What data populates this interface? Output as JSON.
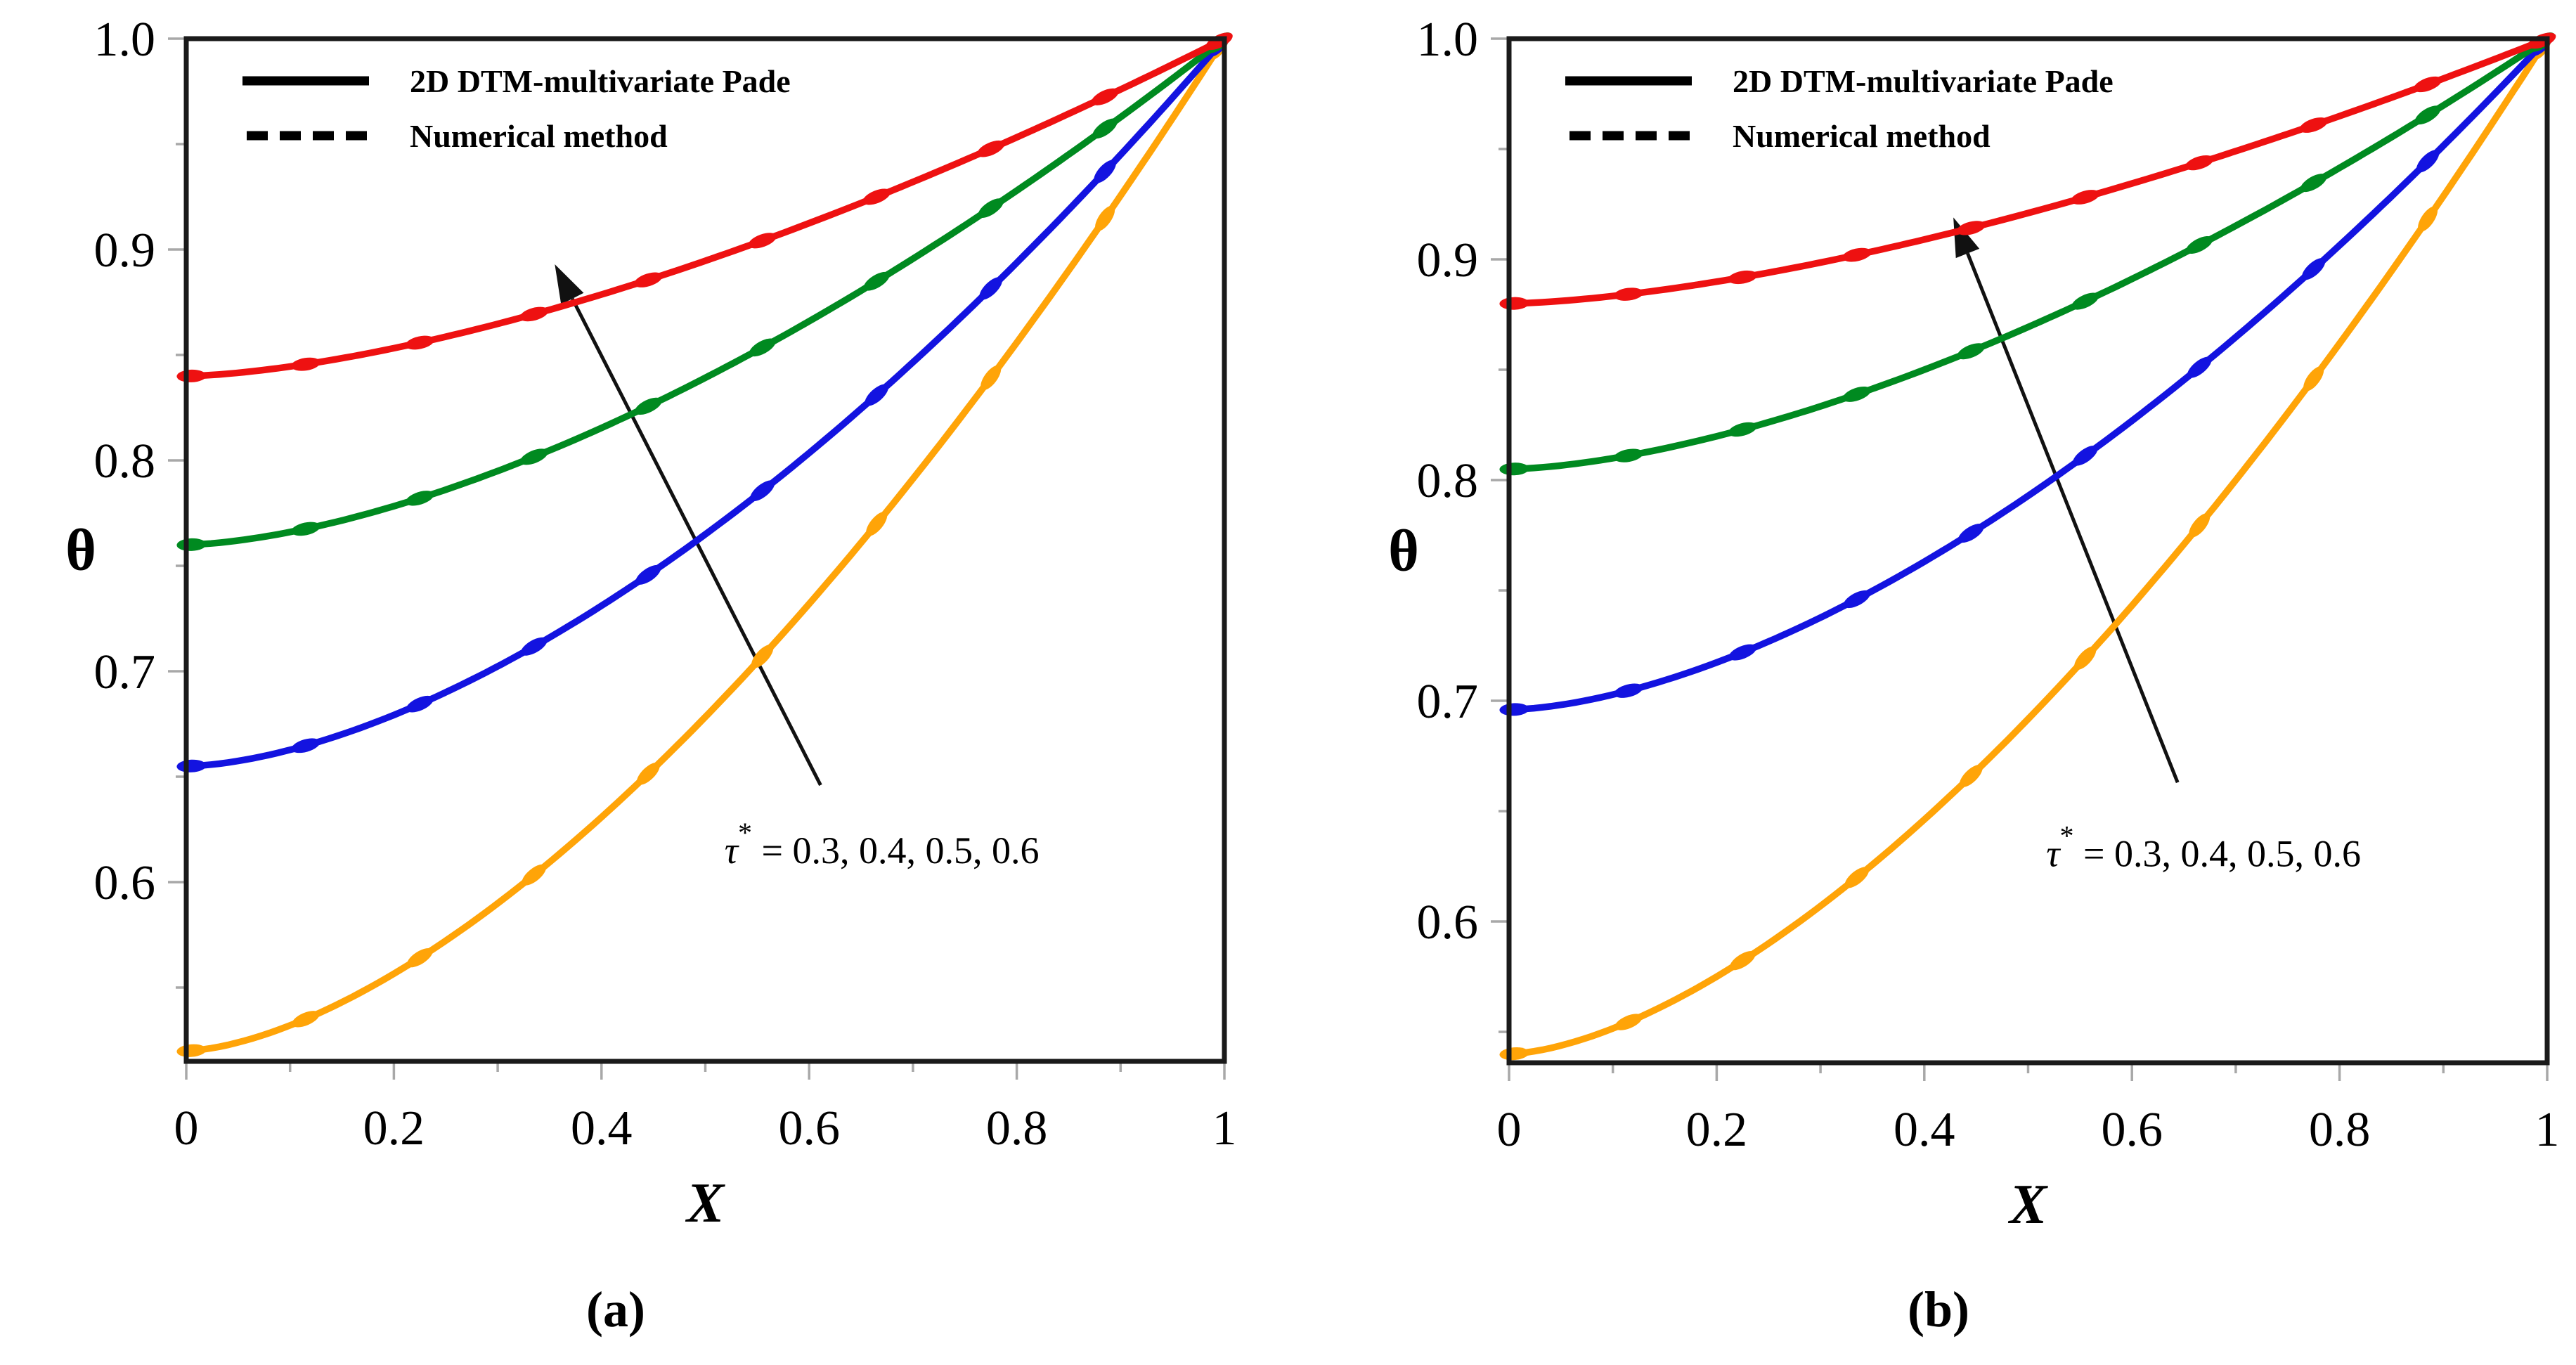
{
  "figure": {
    "background": "#ffffff",
    "description": "Two-panel line chart comparing 2D DTM-multivariate Pade solution with numerical method, theta versus X for four tau* values"
  },
  "colors": {
    "red": "#ee1111",
    "green": "#008a20",
    "blue": "#1313e0",
    "orange": "#ffa408",
    "frame": "#1a1a1a",
    "tick": "#a8a8a8",
    "arrow": "#111111",
    "text": "#000000"
  },
  "chart_data": [
    {
      "type": "line",
      "caption": "(a)",
      "xlabel": "X",
      "ylabel": "θ",
      "xlim": [
        0,
        1
      ],
      "ylim": [
        0.515,
        1.0
      ],
      "grid": false,
      "xticks": {
        "values": [
          0,
          0.2,
          0.4,
          0.6,
          0.8,
          1
        ],
        "labels": [
          "0",
          "0.2",
          "0.4",
          "0.6",
          "0.8",
          "1"
        ],
        "minor": [
          0.1,
          0.3,
          0.5,
          0.7,
          0.9
        ]
      },
      "yticks": {
        "values": [
          1.0,
          0.9,
          0.8,
          0.7,
          0.6
        ],
        "labels": [
          "1.0",
          "0.9",
          "0.8",
          "0.7",
          "0.6"
        ],
        "minor": [
          0.95,
          0.85,
          0.75,
          0.65,
          0.55
        ]
      },
      "legend": {
        "position": "top-left",
        "items": [
          {
            "label": "2D DTM-multivariate Pade",
            "style": "solid"
          },
          {
            "label": "Numerical method",
            "style": "dotted"
          }
        ]
      },
      "annotation": {
        "tau": "τ",
        "sup": "*",
        "rest": " = 0.3, 0.4, 0.5, 0.6",
        "x": 0.67,
        "y": 0.609
      },
      "arrow": {
        "from_x": 0.611,
        "from_y": 0.646,
        "to_x": 0.355,
        "to_y": 0.893
      },
      "markers": {
        "start": 0.005,
        "step": 0.11
      },
      "series": [
        {
          "name": "τ* = 0.3",
          "color_key": "orange",
          "theta0": 0.52,
          "exponent": 1.6,
          "x": [
            0,
            0.1,
            0.2,
            0.3,
            0.4,
            0.5,
            0.6,
            0.7,
            0.8,
            0.9,
            1.0
          ],
          "y": [
            0.52,
            0.532,
            0.557,
            0.59,
            0.631,
            0.678,
            0.732,
            0.791,
            0.856,
            0.926,
            1.0
          ]
        },
        {
          "name": "τ* = 0.4",
          "color_key": "blue",
          "theta0": 0.655,
          "exponent": 1.65,
          "x": [
            0,
            0.1,
            0.2,
            0.3,
            0.4,
            0.5,
            0.6,
            0.7,
            0.8,
            0.9,
            1.0
          ],
          "y": [
            0.655,
            0.663,
            0.679,
            0.702,
            0.731,
            0.765,
            0.804,
            0.847,
            0.894,
            0.945,
            1.0
          ]
        },
        {
          "name": "τ* = 0.5",
          "color_key": "green",
          "theta0": 0.76,
          "exponent": 1.6,
          "x": [
            0,
            0.1,
            0.2,
            0.3,
            0.4,
            0.5,
            0.6,
            0.7,
            0.8,
            0.9,
            1.0
          ],
          "y": [
            0.76,
            0.766,
            0.778,
            0.795,
            0.815,
            0.839,
            0.866,
            0.896,
            0.928,
            0.963,
            1.0
          ]
        },
        {
          "name": "τ* = 0.6",
          "color_key": "red",
          "theta0": 0.84,
          "exponent": 1.55,
          "x": [
            0,
            0.1,
            0.2,
            0.3,
            0.4,
            0.5,
            0.6,
            0.7,
            0.8,
            0.9,
            1.0
          ],
          "y": [
            0.84,
            0.845,
            0.853,
            0.865,
            0.879,
            0.895,
            0.912,
            0.932,
            0.953,
            0.976,
            1.0
          ]
        }
      ]
    },
    {
      "type": "line",
      "caption": "(b)",
      "xlabel": "X",
      "ylabel": "θ",
      "xlim": [
        0,
        1
      ],
      "ylim": [
        0.536,
        1.0
      ],
      "grid": false,
      "xticks": {
        "values": [
          0,
          0.2,
          0.4,
          0.6,
          0.8,
          1
        ],
        "labels": [
          "0",
          "0.2",
          "0.4",
          "0.6",
          "0.8",
          "1"
        ],
        "minor": [
          0.1,
          0.3,
          0.5,
          0.7,
          0.9
        ]
      },
      "yticks": {
        "values": [
          1.0,
          0.9,
          0.8,
          0.7,
          0.6
        ],
        "labels": [
          "1.0",
          "0.9",
          "0.8",
          "0.7",
          "0.6"
        ],
        "minor": [
          0.95,
          0.85,
          0.75,
          0.65,
          0.55
        ]
      },
      "legend": {
        "position": "top-left",
        "items": [
          {
            "label": "2D DTM-multivariate Pade",
            "style": "solid"
          },
          {
            "label": "Numerical method",
            "style": "dotted"
          }
        ]
      },
      "annotation": {
        "tau": "τ",
        "sup": "*",
        "rest": " = 0.3, 0.4, 0.5, 0.6",
        "x": 0.669,
        "y": 0.625
      },
      "arrow": {
        "from_x": 0.644,
        "from_y": 0.663,
        "to_x": 0.428,
        "to_y": 0.919
      },
      "markers": {
        "start": 0.005,
        "step": 0.11
      },
      "series": [
        {
          "name": "τ* = 0.3",
          "color_key": "orange",
          "theta0": 0.54,
          "exponent": 1.6,
          "x": [
            0,
            0.1,
            0.2,
            0.3,
            0.4,
            0.5,
            0.6,
            0.7,
            0.8,
            0.9,
            1.0
          ],
          "y": [
            0.54,
            0.552,
            0.575,
            0.607,
            0.646,
            0.692,
            0.743,
            0.8,
            0.862,
            0.929,
            1.0
          ]
        },
        {
          "name": "τ* = 0.4",
          "color_key": "blue",
          "theta0": 0.696,
          "exponent": 1.65,
          "x": [
            0,
            0.1,
            0.2,
            0.3,
            0.4,
            0.5,
            0.6,
            0.7,
            0.8,
            0.9,
            1.0
          ],
          "y": [
            0.696,
            0.703,
            0.717,
            0.738,
            0.763,
            0.793,
            0.827,
            0.865,
            0.906,
            0.951,
            1.0
          ]
        },
        {
          "name": "τ* = 0.5",
          "color_key": "green",
          "theta0": 0.805,
          "exponent": 1.6,
          "x": [
            0,
            0.1,
            0.2,
            0.3,
            0.4,
            0.5,
            0.6,
            0.7,
            0.8,
            0.9,
            1.0
          ],
          "y": [
            0.805,
            0.81,
            0.82,
            0.833,
            0.85,
            0.869,
            0.891,
            0.915,
            0.941,
            0.97,
            1.0
          ]
        },
        {
          "name": "τ* = 0.6",
          "color_key": "red",
          "theta0": 0.88,
          "exponent": 1.55,
          "x": [
            0,
            0.1,
            0.2,
            0.3,
            0.4,
            0.5,
            0.6,
            0.7,
            0.8,
            0.9,
            1.0
          ],
          "y": [
            0.88,
            0.883,
            0.89,
            0.899,
            0.909,
            0.921,
            0.934,
            0.949,
            0.965,
            0.982,
            1.0
          ]
        }
      ]
    }
  ]
}
